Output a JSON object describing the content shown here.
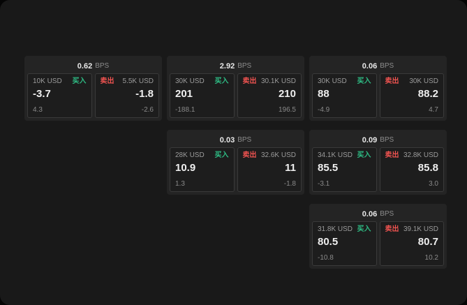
{
  "colors": {
    "buy": "#2ebd85",
    "sell": "#ef5350",
    "card_bg": "#242424",
    "page_bg": "#191919"
  },
  "cards": [
    {
      "bps": "0.62",
      "unit": "BPS",
      "buy": {
        "size": "10K USD",
        "tag": "买入",
        "price": "-3.7",
        "delta": "4.3"
      },
      "sell": {
        "tag": "卖出",
        "size": "5.5K USD",
        "price": "-1.8",
        "delta": "-2.6"
      }
    },
    {
      "bps": "2.92",
      "unit": "BPS",
      "buy": {
        "size": "30K USD",
        "tag": "买入",
        "price": "201",
        "delta": "-188.1"
      },
      "sell": {
        "tag": "卖出",
        "size": "30.1K USD",
        "price": "210",
        "delta": "196.5"
      }
    },
    {
      "bps": "0.06",
      "unit": "BPS",
      "buy": {
        "size": "30K USD",
        "tag": "买入",
        "price": "88",
        "delta": "-4.9"
      },
      "sell": {
        "tag": "卖出",
        "size": "30K USD",
        "price": "88.2",
        "delta": "4.7"
      }
    },
    {
      "bps": "0.03",
      "unit": "BPS",
      "buy": {
        "size": "28K USD",
        "tag": "买入",
        "price": "10.9",
        "delta": "1.3"
      },
      "sell": {
        "tag": "卖出",
        "size": "32.6K USD",
        "price": "11",
        "delta": "-1.8"
      }
    },
    {
      "bps": "0.09",
      "unit": "BPS",
      "buy": {
        "size": "34.1K USD",
        "tag": "买入",
        "price": "85.5",
        "delta": "-3.1"
      },
      "sell": {
        "tag": "卖出",
        "size": "32.8K USD",
        "price": "85.8",
        "delta": "3.0"
      }
    },
    {
      "bps": "0.06",
      "unit": "BPS",
      "buy": {
        "size": "31.8K USD",
        "tag": "买入",
        "price": "80.5",
        "delta": "-10.8"
      },
      "sell": {
        "tag": "卖出",
        "size": "39.1K USD",
        "price": "80.7",
        "delta": "10.2"
      }
    }
  ]
}
